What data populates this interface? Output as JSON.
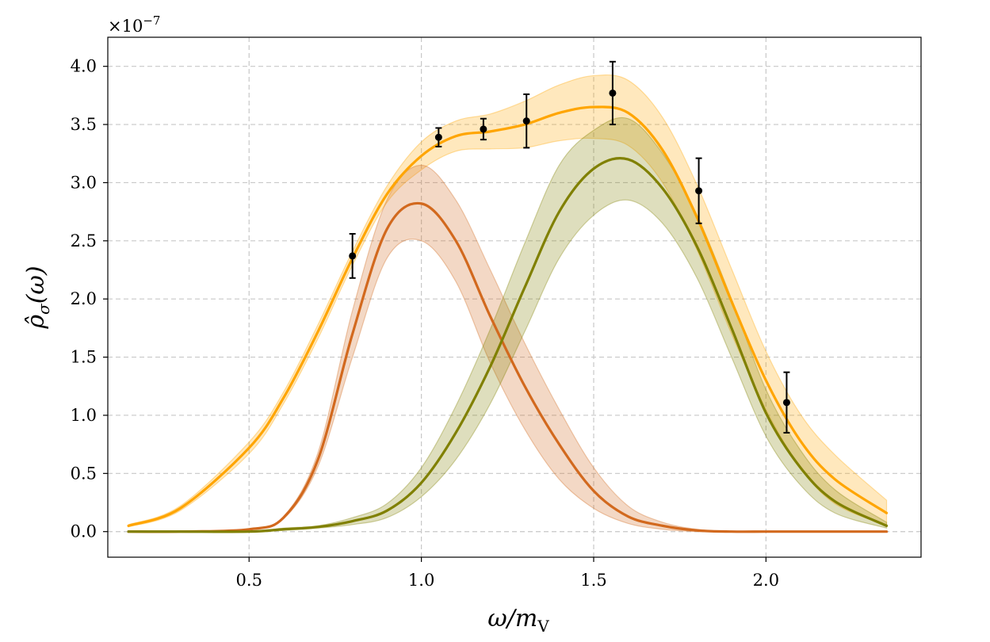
{
  "chart_data": {
    "type": "line",
    "title": "",
    "xlabel": "ω/m",
    "xlabel_sub": "V",
    "ylabel": "ρ̂",
    "ylabel_sub": "σ",
    "ylabel_arg": "(ω)",
    "offset_text_base": "×10",
    "offset_text_exp": "−7",
    "xlim": [
      0.09,
      2.45
    ],
    "ylim": [
      -0.22,
      4.25
    ],
    "xticks": [
      0.5,
      1.0,
      1.5,
      2.0
    ],
    "xtick_labels": [
      "0.5",
      "1.0",
      "1.5",
      "2.0"
    ],
    "yticks": [
      0.0,
      0.5,
      1.0,
      1.5,
      2.0,
      2.5,
      3.0,
      3.5,
      4.0
    ],
    "ytick_labels": [
      "0.0",
      "0.5",
      "1.0",
      "1.5",
      "2.0",
      "2.5",
      "3.0",
      "3.5",
      "4.0"
    ],
    "grid": true,
    "legend": "none",
    "x": [
      0.15,
      0.3,
      0.5,
      0.6,
      0.7,
      0.8,
      0.9,
      1.0,
      1.1,
      1.2,
      1.3,
      1.4,
      1.5,
      1.6,
      1.7,
      1.8,
      1.9,
      2.0,
      2.1,
      2.2,
      2.35
    ],
    "series": [
      {
        "color": "#ffa500",
        "values": [
          0.05,
          0.2,
          0.72,
          1.15,
          1.72,
          2.35,
          2.9,
          3.23,
          3.4,
          3.44,
          3.5,
          3.6,
          3.65,
          3.6,
          3.28,
          2.7,
          1.98,
          1.3,
          0.78,
          0.45,
          0.16
        ],
        "lower": [
          0.04,
          0.18,
          0.67,
          1.1,
          1.66,
          2.29,
          2.83,
          3.11,
          3.27,
          3.29,
          3.3,
          3.36,
          3.38,
          3.32,
          3.0,
          2.42,
          1.7,
          1.05,
          0.55,
          0.24,
          0.05
        ],
        "upper": [
          0.06,
          0.22,
          0.77,
          1.2,
          1.78,
          2.41,
          2.97,
          3.35,
          3.53,
          3.59,
          3.7,
          3.84,
          3.92,
          3.88,
          3.56,
          2.98,
          2.26,
          1.55,
          1.01,
          0.66,
          0.27
        ]
      },
      {
        "color": "#d2691e",
        "values": [
          0.0,
          0.0,
          0.02,
          0.12,
          0.62,
          1.7,
          2.6,
          2.82,
          2.5,
          1.85,
          1.25,
          0.75,
          0.35,
          0.13,
          0.05,
          0.01,
          0.0,
          0.0,
          0.0,
          0.0,
          0.0
        ],
        "lower": [
          0.0,
          0.0,
          0.02,
          0.11,
          0.56,
          1.5,
          2.35,
          2.5,
          2.15,
          1.45,
          0.88,
          0.45,
          0.2,
          0.07,
          0.02,
          0.0,
          0.0,
          0.0,
          0.0,
          0.0,
          0.0
        ],
        "upper": [
          0.0,
          0.0,
          0.02,
          0.13,
          0.68,
          1.9,
          2.85,
          3.15,
          2.85,
          2.25,
          1.62,
          1.05,
          0.55,
          0.22,
          0.08,
          0.02,
          0.0,
          0.0,
          0.0,
          0.0,
          0.0
        ]
      },
      {
        "color": "#808000",
        "values": [
          0.0,
          0.0,
          0.0,
          0.02,
          0.04,
          0.09,
          0.18,
          0.42,
          0.85,
          1.42,
          2.1,
          2.75,
          3.12,
          3.2,
          2.95,
          2.45,
          1.75,
          1.02,
          0.55,
          0.26,
          0.05
        ],
        "lower": [
          0.0,
          0.0,
          0.0,
          0.01,
          0.03,
          0.06,
          0.12,
          0.3,
          0.62,
          1.1,
          1.72,
          2.35,
          2.72,
          2.85,
          2.65,
          2.18,
          1.5,
          0.82,
          0.4,
          0.16,
          0.03
        ],
        "upper": [
          0.0,
          0.0,
          0.0,
          0.03,
          0.05,
          0.12,
          0.24,
          0.55,
          1.08,
          1.74,
          2.48,
          3.15,
          3.45,
          3.55,
          3.25,
          2.72,
          2.0,
          1.22,
          0.7,
          0.36,
          0.08
        ]
      }
    ],
    "points": {
      "color": "#000000",
      "x": [
        0.8,
        1.05,
        1.18,
        1.305,
        1.555,
        1.805,
        2.06
      ],
      "y": [
        2.37,
        3.39,
        3.46,
        3.53,
        3.77,
        2.93,
        1.11
      ],
      "yerr": [
        0.19,
        0.08,
        0.09,
        0.23,
        0.27,
        0.28,
        0.26
      ]
    }
  }
}
